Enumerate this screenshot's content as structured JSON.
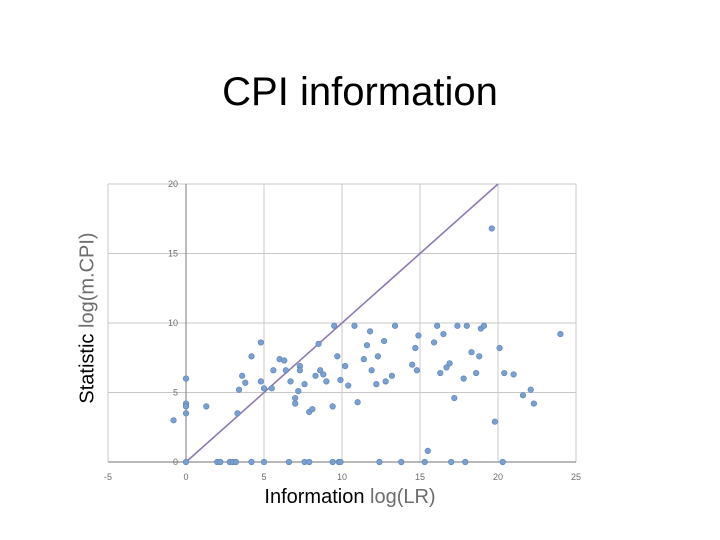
{
  "slide": {
    "title": "CPI information"
  },
  "chart_data": {
    "type": "scatter",
    "title": "CPI information",
    "xlabel_main": "Information",
    "xlabel_sub": "log(LR)",
    "ylabel_main": "Statistic",
    "ylabel_sub": "log(m.CPI)",
    "xlim": [
      -5,
      25
    ],
    "ylim": [
      0,
      20
    ],
    "xticks": [
      "-5",
      "0",
      "5",
      "10",
      "15",
      "20",
      "25"
    ],
    "yticks": [
      "0",
      "5",
      "10",
      "15",
      "20"
    ],
    "grid": true,
    "colors": {
      "point": "#7a9fd0",
      "point_stroke": "#5b82b8",
      "diagonal": "#8d7bb0",
      "grid": "#c8c8c8"
    },
    "reference_line": {
      "from": [
        0,
        0
      ],
      "to": [
        20,
        20
      ]
    },
    "points": [
      [
        -0.8,
        3.0
      ],
      [
        0.0,
        6.0
      ],
      [
        0.0,
        4.2
      ],
      [
        0.0,
        4.0
      ],
      [
        0.0,
        3.5
      ],
      [
        0.0,
        0.0
      ],
      [
        1.3,
        4.0
      ],
      [
        2.0,
        0.0
      ],
      [
        2.2,
        0.0
      ],
      [
        2.8,
        0.0
      ],
      [
        3.0,
        0.0
      ],
      [
        3.2,
        0.0
      ],
      [
        3.3,
        3.5
      ],
      [
        3.4,
        5.2
      ],
      [
        3.6,
        6.2
      ],
      [
        3.8,
        5.7
      ],
      [
        4.2,
        7.6
      ],
      [
        4.2,
        0.0
      ],
      [
        4.8,
        8.6
      ],
      [
        4.8,
        5.8
      ],
      [
        5.0,
        5.3
      ],
      [
        5.0,
        0.0
      ],
      [
        5.5,
        5.3
      ],
      [
        5.6,
        6.6
      ],
      [
        6.0,
        7.4
      ],
      [
        6.3,
        7.3
      ],
      [
        6.4,
        6.6
      ],
      [
        6.6,
        0.0
      ],
      [
        6.7,
        5.8
      ],
      [
        7.0,
        4.6
      ],
      [
        7.0,
        4.2
      ],
      [
        7.2,
        5.1
      ],
      [
        7.3,
        6.9
      ],
      [
        7.3,
        6.6
      ],
      [
        7.6,
        5.6
      ],
      [
        7.6,
        0.0
      ],
      [
        7.9,
        0.0
      ],
      [
        7.9,
        3.6
      ],
      [
        8.1,
        3.8
      ],
      [
        8.3,
        6.2
      ],
      [
        8.5,
        8.5
      ],
      [
        8.6,
        6.6
      ],
      [
        8.8,
        6.3
      ],
      [
        9.0,
        5.8
      ],
      [
        9.4,
        4.0
      ],
      [
        9.4,
        0.0
      ],
      [
        9.5,
        9.8
      ],
      [
        9.7,
        7.6
      ],
      [
        9.8,
        0.0
      ],
      [
        9.9,
        0.0
      ],
      [
        9.9,
        5.9
      ],
      [
        10.2,
        6.9
      ],
      [
        10.4,
        5.5
      ],
      [
        10.8,
        9.8
      ],
      [
        11.0,
        4.3
      ],
      [
        11.4,
        7.4
      ],
      [
        11.6,
        8.4
      ],
      [
        11.8,
        9.4
      ],
      [
        11.9,
        6.6
      ],
      [
        12.2,
        5.6
      ],
      [
        12.3,
        7.6
      ],
      [
        12.4,
        0.0
      ],
      [
        12.7,
        8.7
      ],
      [
        12.8,
        5.8
      ],
      [
        13.2,
        6.2
      ],
      [
        13.4,
        9.8
      ],
      [
        13.8,
        0.0
      ],
      [
        14.5,
        7.0
      ],
      [
        14.7,
        8.2
      ],
      [
        14.8,
        6.6
      ],
      [
        14.9,
        9.1
      ],
      [
        15.3,
        0.0
      ],
      [
        15.5,
        0.8
      ],
      [
        15.9,
        8.6
      ],
      [
        16.1,
        9.8
      ],
      [
        16.3,
        6.4
      ],
      [
        16.5,
        9.2
      ],
      [
        16.7,
        6.8
      ],
      [
        16.9,
        7.1
      ],
      [
        17.0,
        0.0
      ],
      [
        17.2,
        4.6
      ],
      [
        17.4,
        9.8
      ],
      [
        17.8,
        6.0
      ],
      [
        17.9,
        0.0
      ],
      [
        18.0,
        9.8
      ],
      [
        18.3,
        7.9
      ],
      [
        18.6,
        6.4
      ],
      [
        18.8,
        7.6
      ],
      [
        18.9,
        9.6
      ],
      [
        19.1,
        9.8
      ],
      [
        19.6,
        16.8
      ],
      [
        19.8,
        2.9
      ],
      [
        20.1,
        8.2
      ],
      [
        20.3,
        0.0
      ],
      [
        20.4,
        6.4
      ],
      [
        21.0,
        6.3
      ],
      [
        21.6,
        4.8
      ],
      [
        22.1,
        5.2
      ],
      [
        22.3,
        4.2
      ],
      [
        24.0,
        9.2
      ]
    ]
  }
}
